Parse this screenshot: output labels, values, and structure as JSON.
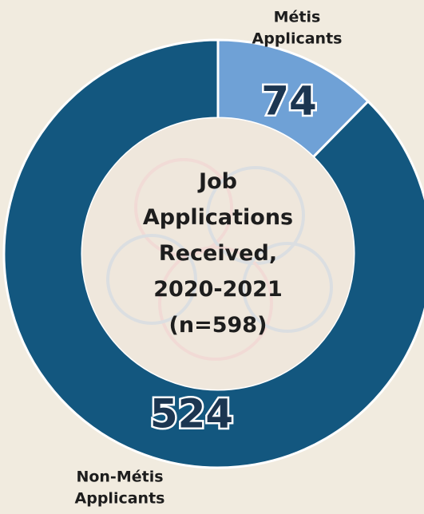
{
  "chart_data": {
    "type": "donut",
    "title": "Job Applications Received, 2020-2021 (n=598)",
    "categories": [
      "Métis Applicants",
      "Non-Métis Applicants"
    ],
    "values": [
      74,
      524
    ],
    "colors": [
      "#6fa1d6",
      "#13577f"
    ]
  }
}
